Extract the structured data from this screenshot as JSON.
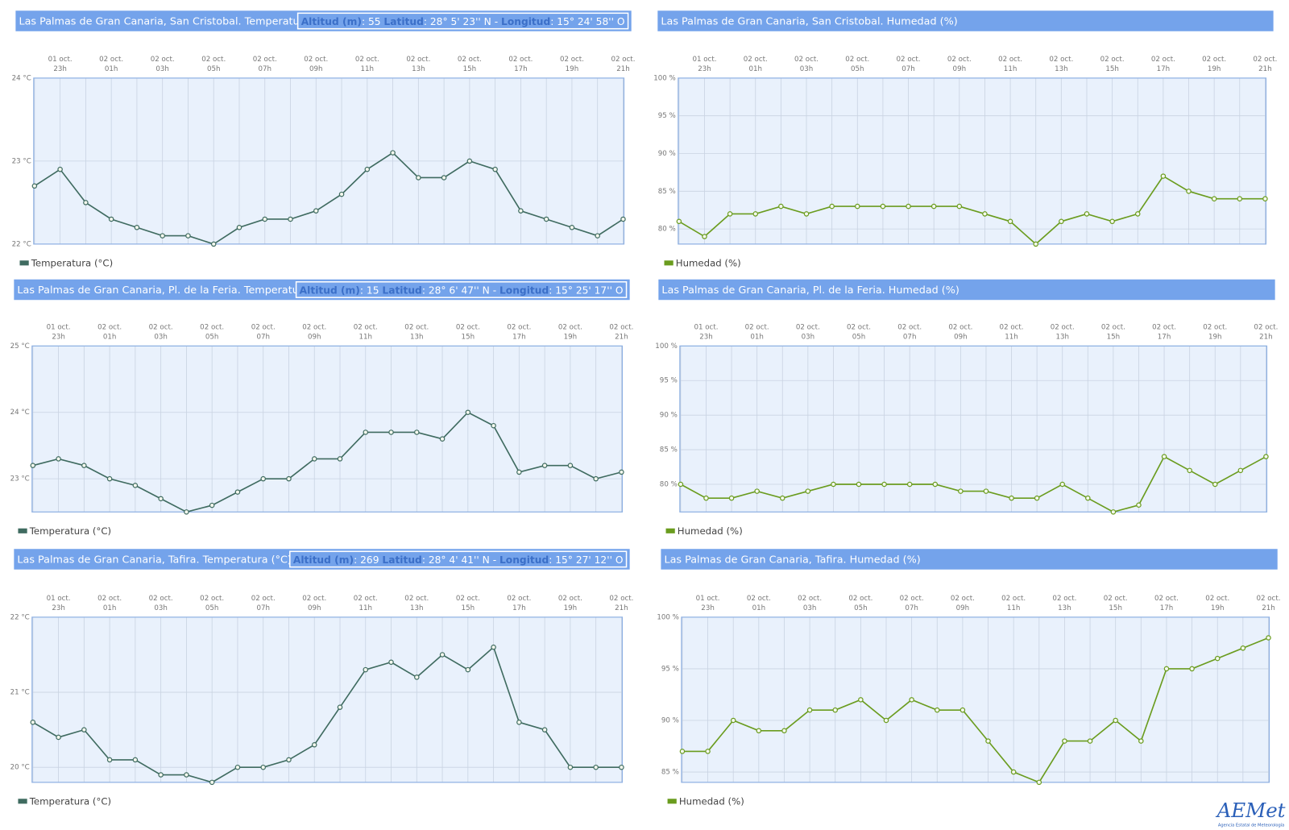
{
  "chart_data": [
    {
      "type": "line",
      "title": "Las Palmas de Gran Canaria, San Cristobal. Temperatura (°C)",
      "info": [
        [
          "Altitud (m)",
          ": 55  "
        ],
        [
          "Latitud",
          ": 28° 5' 23'' N - "
        ],
        [
          "Longitud",
          ": 15° 24' 58'' O"
        ]
      ],
      "categories": [
        null,
        [
          "01 oct.",
          "23h"
        ],
        null,
        [
          "02 oct.",
          "01h"
        ],
        null,
        [
          "02 oct.",
          "03h"
        ],
        null,
        [
          "02 oct.",
          "05h"
        ],
        null,
        [
          "02 oct.",
          "07h"
        ],
        null,
        [
          "02 oct.",
          "09h"
        ],
        null,
        [
          "02 oct.",
          "11h"
        ],
        null,
        [
          "02 oct.",
          "13h"
        ],
        null,
        [
          "02 oct.",
          "15h"
        ],
        null,
        [
          "02 oct.",
          "17h"
        ],
        null,
        [
          "02 oct.",
          "19h"
        ],
        null,
        [
          "02 oct.",
          "21h"
        ]
      ],
      "series": [
        {
          "name": "Temperatura (°C)",
          "color": "#3f6b60",
          "values": [
            22.7,
            22.9,
            22.5,
            22.3,
            22.2,
            22.1,
            22.1,
            22.0,
            22.2,
            22.3,
            22.3,
            22.4,
            22.6,
            22.9,
            23.1,
            22.8,
            22.8,
            23.0,
            22.9,
            22.4,
            22.3,
            22.2,
            22.1,
            22.3
          ]
        }
      ],
      "ylim": [
        22,
        24
      ],
      "yticks": [
        {
          "value": 22,
          "label": "22 °C"
        },
        {
          "value": 23,
          "label": "23 °C"
        },
        {
          "value": 24,
          "label": "24 °C"
        }
      ],
      "grid": true
    },
    {
      "type": "line",
      "title": "Las Palmas de Gran Canaria, San Cristobal. Humedad (%)",
      "categories": [
        null,
        [
          "01 oct.",
          "23h"
        ],
        null,
        [
          "02 oct.",
          "01h"
        ],
        null,
        [
          "02 oct.",
          "03h"
        ],
        null,
        [
          "02 oct.",
          "05h"
        ],
        null,
        [
          "02 oct.",
          "07h"
        ],
        null,
        [
          "02 oct.",
          "09h"
        ],
        null,
        [
          "02 oct.",
          "11h"
        ],
        null,
        [
          "02 oct.",
          "13h"
        ],
        null,
        [
          "02 oct.",
          "15h"
        ],
        null,
        [
          "02 oct.",
          "17h"
        ],
        null,
        [
          "02 oct.",
          "19h"
        ],
        null,
        [
          "02 oct.",
          "21h"
        ]
      ],
      "series": [
        {
          "name": "Humedad (%)",
          "color": "#6a9c1e",
          "values": [
            81,
            79,
            82,
            82,
            83,
            82,
            83,
            83,
            83,
            83,
            83,
            83,
            82,
            81,
            78,
            81,
            82,
            81,
            82,
            87,
            85,
            84,
            84,
            84
          ]
        }
      ],
      "ylim": [
        78,
        100
      ],
      "yticks": [
        {
          "value": 80,
          "label": "80 %"
        },
        {
          "value": 85,
          "label": "85 %"
        },
        {
          "value": 90,
          "label": "90 %"
        },
        {
          "value": 95,
          "label": "95 %"
        },
        {
          "value": 100,
          "label": "100 %"
        }
      ],
      "grid": true
    },
    {
      "type": "line",
      "title": "Las Palmas de Gran Canaria, Pl. de la Feria. Temperatura (°C)",
      "info": [
        [
          "Altitud (m)",
          ": 15  "
        ],
        [
          "Latitud",
          ": 28° 6' 47'' N - "
        ],
        [
          "Longitud",
          ": 15° 25' 17'' O"
        ]
      ],
      "categories": [
        null,
        [
          "01 oct.",
          "23h"
        ],
        null,
        [
          "02 oct.",
          "01h"
        ],
        null,
        [
          "02 oct.",
          "03h"
        ],
        null,
        [
          "02 oct.",
          "05h"
        ],
        null,
        [
          "02 oct.",
          "07h"
        ],
        null,
        [
          "02 oct.",
          "09h"
        ],
        null,
        [
          "02 oct.",
          "11h"
        ],
        null,
        [
          "02 oct.",
          "13h"
        ],
        null,
        [
          "02 oct.",
          "15h"
        ],
        null,
        [
          "02 oct.",
          "17h"
        ],
        null,
        [
          "02 oct.",
          "19h"
        ],
        null,
        [
          "02 oct.",
          "21h"
        ]
      ],
      "series": [
        {
          "name": "Temperatura (°C)",
          "color": "#3f6b60",
          "values": [
            23.2,
            23.3,
            23.2,
            23.0,
            22.9,
            22.7,
            22.5,
            22.6,
            22.8,
            23.0,
            23.0,
            23.3,
            23.3,
            23.7,
            23.7,
            23.7,
            23.6,
            24.0,
            23.8,
            23.1,
            23.2,
            23.2,
            23.0,
            23.1
          ]
        }
      ],
      "ylim": [
        22.5,
        25
      ],
      "yticks": [
        {
          "value": 23,
          "label": "23 °C"
        },
        {
          "value": 24,
          "label": "24 °C"
        },
        {
          "value": 25,
          "label": "25 °C"
        }
      ],
      "grid": true
    },
    {
      "type": "line",
      "title": "Las Palmas de Gran Canaria, Pl. de la Feria. Humedad (%)",
      "categories": [
        null,
        [
          "01 oct.",
          "23h"
        ],
        null,
        [
          "02 oct.",
          "01h"
        ],
        null,
        [
          "02 oct.",
          "03h"
        ],
        null,
        [
          "02 oct.",
          "05h"
        ],
        null,
        [
          "02 oct.",
          "07h"
        ],
        null,
        [
          "02 oct.",
          "09h"
        ],
        null,
        [
          "02 oct.",
          "11h"
        ],
        null,
        [
          "02 oct.",
          "13h"
        ],
        null,
        [
          "02 oct.",
          "15h"
        ],
        null,
        [
          "02 oct.",
          "17h"
        ],
        null,
        [
          "02 oct.",
          "19h"
        ],
        null,
        [
          "02 oct.",
          "21h"
        ]
      ],
      "series": [
        {
          "name": "Humedad (%)",
          "color": "#6a9c1e",
          "values": [
            80,
            78,
            78,
            79,
            78,
            79,
            80,
            80,
            80,
            80,
            80,
            79,
            79,
            78,
            78,
            80,
            78,
            76,
            77,
            84,
            82,
            80,
            82,
            84
          ]
        }
      ],
      "ylim": [
        76,
        100
      ],
      "yticks": [
        {
          "value": 80,
          "label": "80 %"
        },
        {
          "value": 85,
          "label": "85 %"
        },
        {
          "value": 90,
          "label": "90 %"
        },
        {
          "value": 95,
          "label": "95 %"
        },
        {
          "value": 100,
          "label": "100 %"
        }
      ],
      "grid": true
    },
    {
      "type": "line",
      "title": "Las Palmas de Gran Canaria, Tafira. Temperatura (°C)",
      "info": [
        [
          "Altitud (m)",
          ": 269  "
        ],
        [
          "Latitud",
          ": 28° 4' 41'' N - "
        ],
        [
          "Longitud",
          ": 15° 27' 12'' O"
        ]
      ],
      "categories": [
        null,
        [
          "01 oct.",
          "23h"
        ],
        null,
        [
          "02 oct.",
          "01h"
        ],
        null,
        [
          "02 oct.",
          "03h"
        ],
        null,
        [
          "02 oct.",
          "05h"
        ],
        null,
        [
          "02 oct.",
          "07h"
        ],
        null,
        [
          "02 oct.",
          "09h"
        ],
        null,
        [
          "02 oct.",
          "11h"
        ],
        null,
        [
          "02 oct.",
          "13h"
        ],
        null,
        [
          "02 oct.",
          "15h"
        ],
        null,
        [
          "02 oct.",
          "17h"
        ],
        null,
        [
          "02 oct.",
          "19h"
        ],
        null,
        [
          "02 oct.",
          "21h"
        ]
      ],
      "series": [
        {
          "name": "Temperatura (°C)",
          "color": "#3f6b60",
          "values": [
            20.6,
            20.4,
            20.5,
            20.1,
            20.1,
            19.9,
            19.9,
            19.8,
            20.0,
            20.0,
            20.1,
            20.3,
            20.8,
            21.3,
            21.4,
            21.2,
            21.5,
            21.3,
            21.6,
            20.6,
            20.5,
            20.0,
            20.0,
            20.0
          ]
        }
      ],
      "ylim": [
        19.8,
        22
      ],
      "yticks": [
        {
          "value": 20,
          "label": "20 °C"
        },
        {
          "value": 21,
          "label": "21 °C"
        },
        {
          "value": 22,
          "label": "22 °C"
        }
      ],
      "grid": true
    },
    {
      "type": "line",
      "title": "Las Palmas de Gran Canaria, Tafira. Humedad (%)",
      "categories": [
        null,
        [
          "01 oct.",
          "23h"
        ],
        null,
        [
          "02 oct.",
          "01h"
        ],
        null,
        [
          "02 oct.",
          "03h"
        ],
        null,
        [
          "02 oct.",
          "05h"
        ],
        null,
        [
          "02 oct.",
          "07h"
        ],
        null,
        [
          "02 oct.",
          "09h"
        ],
        null,
        [
          "02 oct.",
          "11h"
        ],
        null,
        [
          "02 oct.",
          "13h"
        ],
        null,
        [
          "02 oct.",
          "15h"
        ],
        null,
        [
          "02 oct.",
          "17h"
        ],
        null,
        [
          "02 oct.",
          "19h"
        ],
        null,
        [
          "02 oct.",
          "21h"
        ]
      ],
      "series": [
        {
          "name": "Humedad (%)",
          "color": "#6a9c1e",
          "values": [
            87,
            87,
            90,
            89,
            89,
            91,
            91,
            92,
            90,
            92,
            91,
            91,
            88,
            85,
            84,
            88,
            88,
            90,
            88,
            95,
            95,
            96,
            97,
            98
          ]
        }
      ],
      "ylim": [
        84,
        100
      ],
      "yticks": [
        {
          "value": 85,
          "label": "85 %"
        },
        {
          "value": 90,
          "label": "90 %"
        },
        {
          "value": 95,
          "label": "95 %"
        },
        {
          "value": 100,
          "label": "100 %"
        }
      ],
      "grid": true
    }
  ],
  "logo": {
    "name": "AEMet",
    "subtitle": "Agencia Estatal de Meteorología"
  }
}
